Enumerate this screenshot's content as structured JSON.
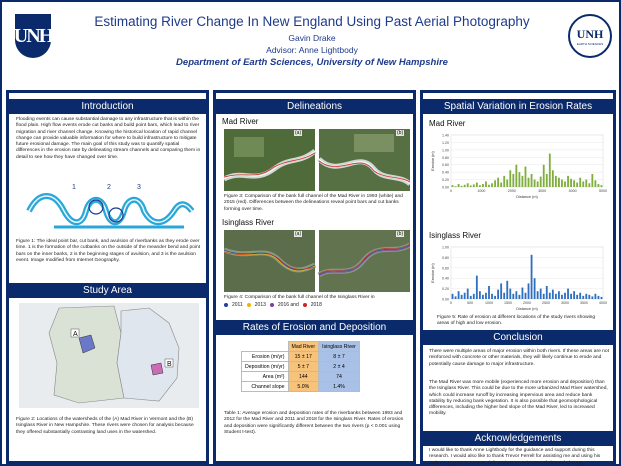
{
  "header": {
    "title": "Estimating River Change In New England Using Past Aerial Photography",
    "author": "Gavin Drake",
    "advisor": "Advisor: Anne Lightbody",
    "department": "Department of Earth Sciences, University of New Hampshire",
    "logo_left_text": "UNH",
    "logo_right_text": "UNH",
    "logo_right_ring": "EARTH SCIENCES"
  },
  "introduction": {
    "heading": "Introduction",
    "body": "Flooding events can cause substantial damage to any infrastructure that is within the flood plain. High flow events erode cut banks and build point bars, which lead to river migration and river channel change. Knowing the historical location of rapid channel change can provide valuable information for where to build infrastructure to mitigate future erosional damage. The main goal of this study was to quantify spatial differences in the erosion rate by delineating stream channels and comparing them in detail to see how they have changed over time.",
    "diagram_numbers": [
      "1",
      "2",
      "3"
    ],
    "caption": "Figure 1: The ideal point bar, cut bank, and avulsion of riverbanks as they erode over time. 1 is the formation of the cutbanks on the outside of the meander bend and point bars on the inner banks, 2 is the beginning stages of avulsion, and 3 is the avulsion event. Image modified from Internet Geography."
  },
  "study_area": {
    "heading": "Study Area",
    "panel_a": "A",
    "panel_b": "B",
    "caption": "Figure 2: Locations of the watersheds of the (A) Mad River in Vermont and the (B) Isinglass River in New Hampshire. These rivers were chosen for analysis because they offered substantially contrasting land uses in the watershed."
  },
  "delineations": {
    "heading": "Delineations",
    "mad_title": "Mad River",
    "mad_a": "(a)",
    "mad_b": "(b)",
    "mad_caption": "Figure 3: Comparison of the bank full channel of the Mad River in 1993 (white) and 2015 (red). Differences between the delineations reveal point bars and cut banks forming over time.",
    "isinglass_title": "Isinglass River",
    "isinglass_a": "(a)",
    "isinglass_b": "(b)",
    "isinglass_caption": "Figure 4: Comparison of the bank full channel of the Isinglass River in",
    "legend": [
      "2011",
      "2013",
      "2016 and",
      "2018"
    ],
    "legend_colors": [
      "#1f3fa6",
      "#f0b400",
      "#7a3fa0",
      "#c62828"
    ]
  },
  "rates": {
    "heading": "Rates of Erosion and Deposition",
    "columns": [
      "Mad River",
      "Isinglass River"
    ],
    "rows": [
      {
        "label": "Erosion (m/yr)",
        "mad": "15 ± 17",
        "isinglass": "8 ± 7"
      },
      {
        "label": "Deposition (m/yr)",
        "mad": "5 ± 7",
        "isinglass": "2 ± 4"
      },
      {
        "label": "Area (m²)",
        "mad": "144",
        "isinglass": "74"
      },
      {
        "label": "Channel slope",
        "mad": "5.0%",
        "isinglass": "1.4%"
      }
    ],
    "caption": "Table 1: Average erosion and deposition rates of the riverbanks between 1993 and 2012 for the Mad River and 2011 and 2018 for the Isinglass River. Rates of erosion and deposition were significantly different between the two rivers (p < 0.001 using Student t-test)."
  },
  "spatial": {
    "heading": "Spatial Variation in Erosion Rates",
    "mad_title": "Mad River",
    "isinglass_title": "Isinglass River",
    "caption": "Figure 5: Rate of erosion at different locations of the study rivers showing areas of high and low erosion."
  },
  "conclusion": {
    "heading": "Conclusion",
    "p1": "There were multiple areas of major erosion within both rivers. If these areas are not reinforced with concrete or other materials, they will likely continue to erode and potentially cause damage to major infrastructure.",
    "p2": "The Mad River was more mobile (experienced more erosion and deposition) than the Isinglass River. This could be due to the more urbanized Mad River watershed, which could increase runoff by increasing impervious area and reduce bank stability by reducing bank vegetation. It is also possible that geomorphological differences, including the higher bed slope of the Mad River, led to increased mobility."
  },
  "acknowledgements": {
    "heading": "Acknowledgements",
    "body": "I would like to thank Anne Lightbody for the guidance and support during this research. I would also like to thank Trevor Ferrell for assisting me and using his python program to convert delineations to estimates of channel change."
  },
  "chart_data": [
    {
      "type": "bar",
      "title": "Mad River",
      "xlabel": "Distance (m)",
      "ylabel": "Erosion (m)",
      "xlim": [
        0,
        5000
      ],
      "ylim": [
        0,
        1.4
      ],
      "xticks": [
        "0",
        "1000",
        "2000",
        "3000",
        "4000",
        "5000"
      ],
      "yticks": [
        "0.00",
        "0.20",
        "0.40",
        "0.60",
        "0.80",
        "1.00",
        "1.20",
        "1.40"
      ],
      "color": "#7fae3c",
      "x": [
        0,
        100,
        200,
        300,
        400,
        500,
        600,
        700,
        800,
        900,
        1000,
        1100,
        1200,
        1300,
        1400,
        1500,
        1600,
        1700,
        1800,
        1900,
        2000,
        2100,
        2200,
        2300,
        2400,
        2500,
        2600,
        2700,
        2800,
        2900,
        3000,
        3100,
        3200,
        3300,
        3400,
        3500,
        3600,
        3700,
        3800,
        3900,
        4000,
        4100,
        4200,
        4300,
        4400,
        4500,
        4600,
        4700,
        4800,
        4900
      ],
      "y": [
        0.05,
        0.02,
        0.08,
        0.03,
        0.06,
        0.1,
        0.04,
        0.07,
        0.12,
        0.05,
        0.08,
        0.15,
        0.06,
        0.1,
        0.18,
        0.25,
        0.12,
        0.3,
        0.2,
        0.45,
        0.35,
        0.6,
        0.4,
        0.3,
        0.55,
        0.25,
        0.35,
        0.2,
        0.15,
        0.28,
        0.6,
        0.35,
        0.9,
        0.45,
        0.3,
        0.25,
        0.2,
        0.15,
        0.3,
        0.22,
        0.18,
        0.12,
        0.25,
        0.15,
        0.2,
        0.1,
        0.35,
        0.18,
        0.08,
        0.05
      ]
    },
    {
      "type": "bar",
      "title": "Isinglass River",
      "xlabel": "Distance (m)",
      "ylabel": "Erosion (m)",
      "xlim": [
        0,
        4000
      ],
      "ylim": [
        0,
        1.0
      ],
      "xticks": [
        "0",
        "500",
        "1000",
        "1500",
        "2000",
        "2500",
        "3000",
        "3500",
        "4000"
      ],
      "yticks": [
        "0.00",
        "0.20",
        "0.40",
        "0.60",
        "0.80",
        "1.00"
      ],
      "color": "#2f6fc0",
      "x": [
        0,
        80,
        160,
        240,
        320,
        400,
        480,
        560,
        640,
        720,
        800,
        880,
        960,
        1040,
        1120,
        1200,
        1280,
        1360,
        1440,
        1520,
        1600,
        1680,
        1760,
        1840,
        1920,
        2000,
        2080,
        2160,
        2240,
        2320,
        2400,
        2480,
        2560,
        2640,
        2720,
        2800,
        2880,
        2960,
        3040,
        3120,
        3200,
        3280,
        3360,
        3440,
        3520,
        3600,
        3680,
        3760,
        3840,
        3920
      ],
      "y": [
        0.1,
        0.05,
        0.15,
        0.08,
        0.12,
        0.2,
        0.06,
        0.1,
        0.45,
        0.15,
        0.08,
        0.12,
        0.25,
        0.1,
        0.06,
        0.18,
        0.3,
        0.12,
        0.35,
        0.2,
        0.1,
        0.15,
        0.08,
        0.22,
        0.12,
        0.3,
        0.85,
        0.4,
        0.15,
        0.2,
        0.1,
        0.25,
        0.12,
        0.18,
        0.1,
        0.15,
        0.08,
        0.12,
        0.2,
        0.1,
        0.15,
        0.08,
        0.12,
        0.06,
        0.1,
        0.08,
        0.05,
        0.1,
        0.06,
        0.04
      ]
    }
  ]
}
